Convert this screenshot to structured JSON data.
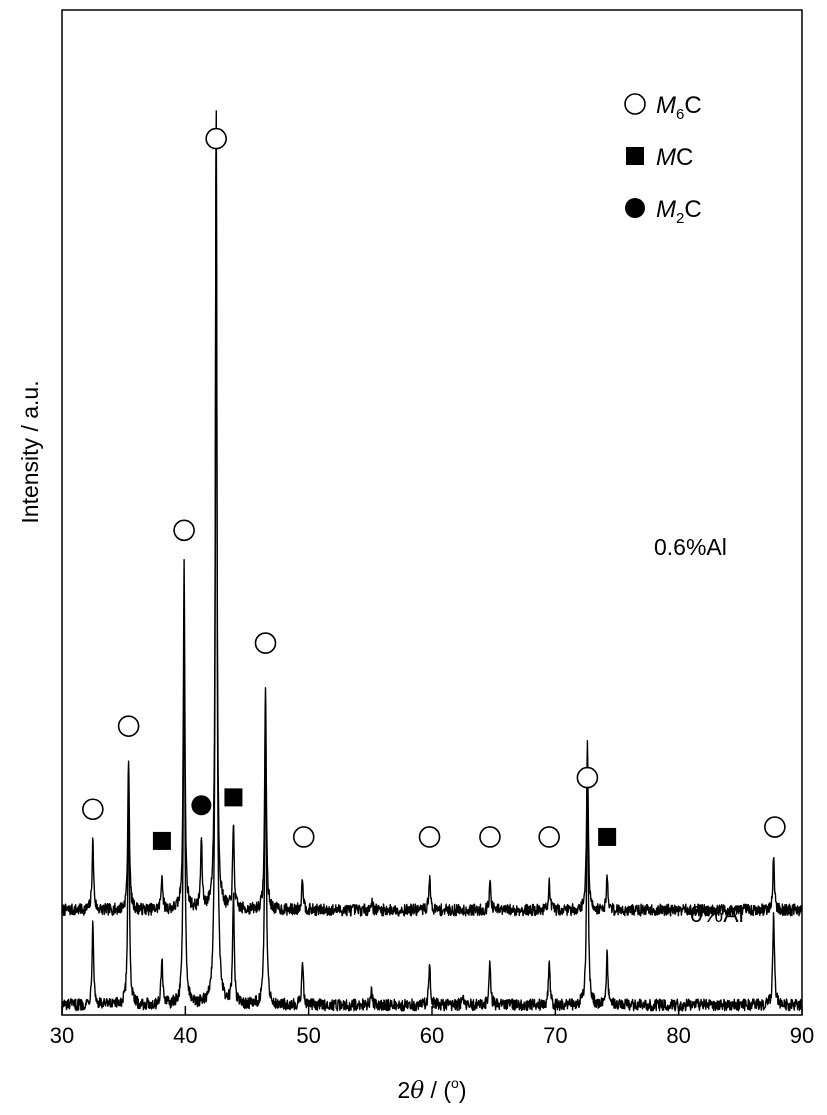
{
  "chart_data": {
    "type": "line",
    "xlabel": {
      "prefix": "2",
      "theta": "θ",
      "unit_open": " / (",
      "unit_sup": "o",
      "unit_close": ")"
    },
    "ylabel": "Intensity / a.u.",
    "xlim": [
      30,
      90
    ],
    "xticks": [
      "30",
      "40",
      "50",
      "60",
      "70",
      "80",
      "90"
    ],
    "colors": {
      "trace": "#000000",
      "frame": "#000000"
    },
    "legend": {
      "placement": "top-right",
      "entries": [
        {
          "marker": "open-circle",
          "italic": "M",
          "sub": "6",
          "suffix": "C"
        },
        {
          "marker": "filled-square",
          "italic": "M",
          "sub": "",
          "suffix": "C"
        },
        {
          "marker": "filled-circle",
          "italic": "M",
          "sub": "2",
          "suffix": "C"
        }
      ]
    },
    "series": [
      {
        "name": "0.6%Al",
        "baseline": 0.53,
        "peaks": [
          {
            "x": 32.5,
            "h": 0.35
          },
          {
            "x": 35.4,
            "h": 0.78
          },
          {
            "x": 38.1,
            "h": 0.18
          },
          {
            "x": 39.9,
            "h": 1.75
          },
          {
            "x": 41.3,
            "h": 0.35
          },
          {
            "x": 42.5,
            "h": 3.95
          },
          {
            "x": 43.9,
            "h": 0.42
          },
          {
            "x": 46.5,
            "h": 1.15
          },
          {
            "x": 49.5,
            "h": 0.17
          },
          {
            "x": 55.1,
            "h": 0.05
          },
          {
            "x": 59.8,
            "h": 0.17
          },
          {
            "x": 64.7,
            "h": 0.14
          },
          {
            "x": 69.5,
            "h": 0.14
          },
          {
            "x": 72.6,
            "h": 0.88
          },
          {
            "x": 74.2,
            "h": 0.17
          },
          {
            "x": 87.7,
            "h": 0.27
          }
        ],
        "markers": [
          {
            "x": 32.5,
            "y": 1.04,
            "type": "open-circle"
          },
          {
            "x": 35.4,
            "y": 1.46,
            "type": "open-circle"
          },
          {
            "x": 38.1,
            "y": 0.88,
            "type": "filled-square"
          },
          {
            "x": 39.9,
            "y": 2.45,
            "type": "open-circle"
          },
          {
            "x": 41.3,
            "y": 1.06,
            "type": "filled-circle"
          },
          {
            "x": 42.5,
            "y": 4.43,
            "type": "open-circle"
          },
          {
            "x": 43.9,
            "y": 1.1,
            "type": "filled-square"
          },
          {
            "x": 46.5,
            "y": 1.88,
            "type": "open-circle"
          },
          {
            "x": 49.6,
            "y": 0.9,
            "type": "open-circle"
          },
          {
            "x": 59.8,
            "y": 0.9,
            "type": "open-circle"
          },
          {
            "x": 64.7,
            "y": 0.9,
            "type": "open-circle"
          },
          {
            "x": 69.5,
            "y": 0.9,
            "type": "open-circle"
          },
          {
            "x": 72.6,
            "y": 1.2,
            "type": "open-circle"
          },
          {
            "x": 74.2,
            "y": 0.9,
            "type": "filled-square"
          },
          {
            "x": 87.8,
            "y": 0.95,
            "type": "open-circle"
          }
        ]
      },
      {
        "name": "0%Al",
        "baseline": 0.05,
        "peaks": [
          {
            "x": 32.5,
            "h": 0.44
          },
          {
            "x": 35.4,
            "h": 1.15
          },
          {
            "x": 38.1,
            "h": 0.25
          },
          {
            "x": 39.9,
            "h": 1.95
          },
          {
            "x": 42.5,
            "h": 4.6
          },
          {
            "x": 43.9,
            "h": 0.56
          },
          {
            "x": 46.5,
            "h": 1.52
          },
          {
            "x": 49.5,
            "h": 0.23
          },
          {
            "x": 55.1,
            "h": 0.08
          },
          {
            "x": 59.8,
            "h": 0.22
          },
          {
            "x": 62.5,
            "h": 0.05
          },
          {
            "x": 64.7,
            "h": 0.22
          },
          {
            "x": 69.5,
            "h": 0.22
          },
          {
            "x": 72.6,
            "h": 1.26
          },
          {
            "x": 74.2,
            "h": 0.25
          },
          {
            "x": 87.7,
            "h": 0.48
          }
        ],
        "markers": []
      }
    ]
  }
}
